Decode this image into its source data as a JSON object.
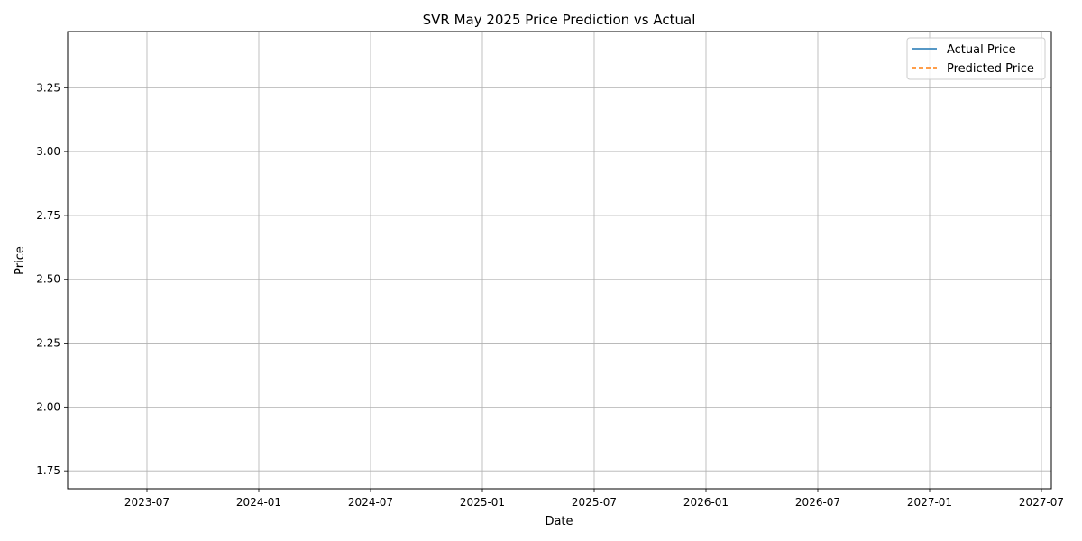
{
  "chart_data": {
    "type": "line",
    "title": "SVR May 2025 Price Prediction vs Actual",
    "xlabel": "Date",
    "ylabel": "Price",
    "x_ticks": [
      "2023-07",
      "2024-01",
      "2024-07",
      "2025-01",
      "2025-07",
      "2026-01",
      "2026-07",
      "2027-01",
      "2027-07"
    ],
    "y_ticks": [
      "1.75",
      "2.00",
      "2.25",
      "2.50",
      "2.75",
      "3.00",
      "3.25"
    ],
    "ylim": [
      1.68,
      3.47
    ],
    "grid": true,
    "legend_position": "top-right",
    "series": [
      {
        "name": "Actual Price",
        "color": "#1f77b4",
        "linestyle": "solid",
        "points": []
      },
      {
        "name": "Predicted Price",
        "color": "#ff7f0e",
        "linestyle": "dashed",
        "points": []
      }
    ]
  }
}
